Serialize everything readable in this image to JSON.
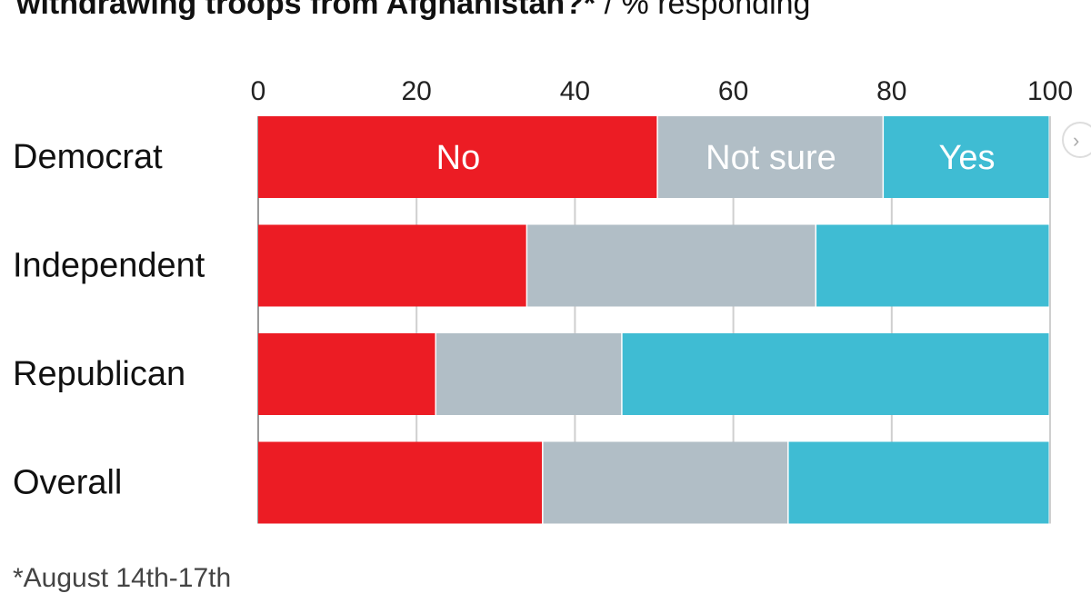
{
  "title": {
    "question_fragment": "withdrawing troops from Afghanistan?*",
    "unit_fragment": "% responding"
  },
  "footnote": "*August 14th-17th",
  "colors": {
    "no": "#ec1c24",
    "not_sure": "#b1bec6",
    "yes": "#3fbcd3",
    "grid": "#cfcfcf",
    "baseline": "#999999"
  },
  "chart_data": {
    "type": "bar",
    "orientation": "horizontal",
    "stacked": true,
    "title": "withdrawing troops from Afghanistan?* / % responding",
    "xlim": [
      0,
      100
    ],
    "x_ticks": [
      0,
      20,
      40,
      60,
      80,
      100
    ],
    "x_axis_position": "top",
    "grid": true,
    "categories": [
      "Democrat",
      "Independent",
      "Republican",
      "Overall"
    ],
    "series": [
      {
        "name": "No",
        "key": "no",
        "values": [
          50.5,
          34,
          22.5,
          36
        ]
      },
      {
        "name": "Not sure",
        "key": "not_sure",
        "values": [
          28.5,
          36.5,
          23.5,
          31
        ]
      },
      {
        "name": "Yes",
        "key": "yes",
        "values": [
          21,
          29.5,
          54,
          33
        ]
      }
    ],
    "inline_labels_on_category": "Democrat",
    "footnote": "*August 14th-17th"
  }
}
